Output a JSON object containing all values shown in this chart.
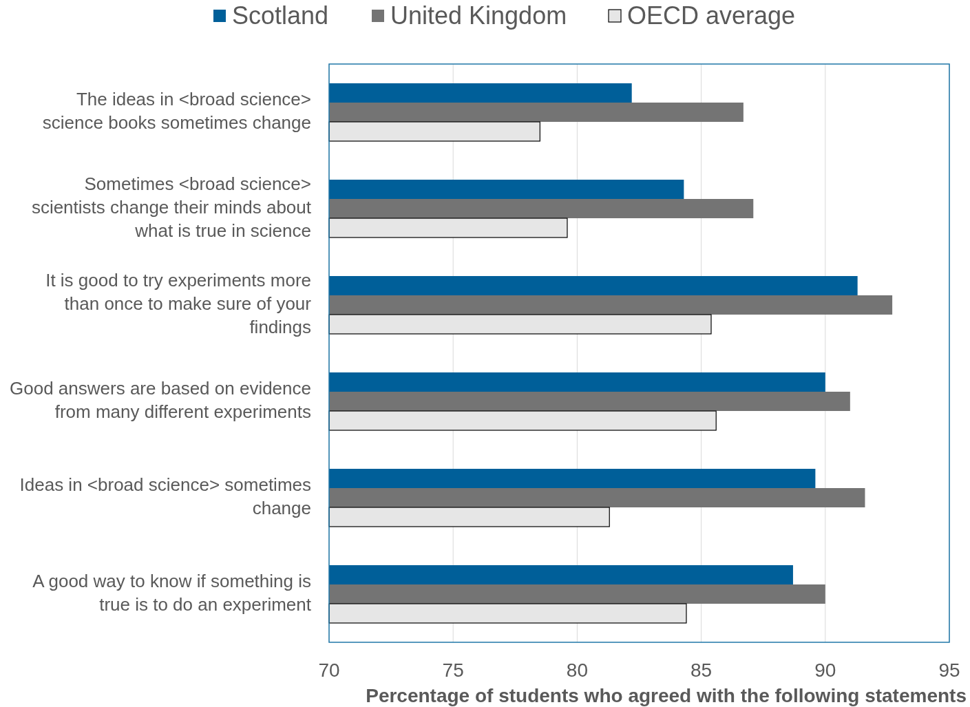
{
  "chart_data": {
    "type": "bar",
    "orientation": "horizontal",
    "xlabel": "Percentage of students who agreed with the following statements",
    "categories": [
      "The ideas in <broad science> science books sometimes change",
      "Sometimes <broad science> scientists change their minds about what is true in science",
      "It is good to try experiments more than once to make sure of your findings",
      "Good answers are based on evidence from many different experiments",
      "Ideas in <broad science> sometimes change",
      "A good way to know if something is true is to do an experiment"
    ],
    "series": [
      {
        "name": "Scotland",
        "color": "#005f99",
        "values": [
          82.2,
          84.3,
          91.3,
          90.0,
          89.6,
          88.7
        ]
      },
      {
        "name": "United Kingdom",
        "color": "#747474",
        "values": [
          86.7,
          87.1,
          92.7,
          91.0,
          91.6,
          90.0
        ]
      },
      {
        "name": "OECD average",
        "color": "#e6e6e6",
        "values": [
          78.5,
          79.6,
          85.4,
          85.6,
          81.3,
          84.4
        ]
      }
    ],
    "xlim": [
      70,
      95
    ],
    "xticks": [
      70,
      75,
      80,
      85,
      90,
      95
    ],
    "grid": "x",
    "legend": "top"
  }
}
